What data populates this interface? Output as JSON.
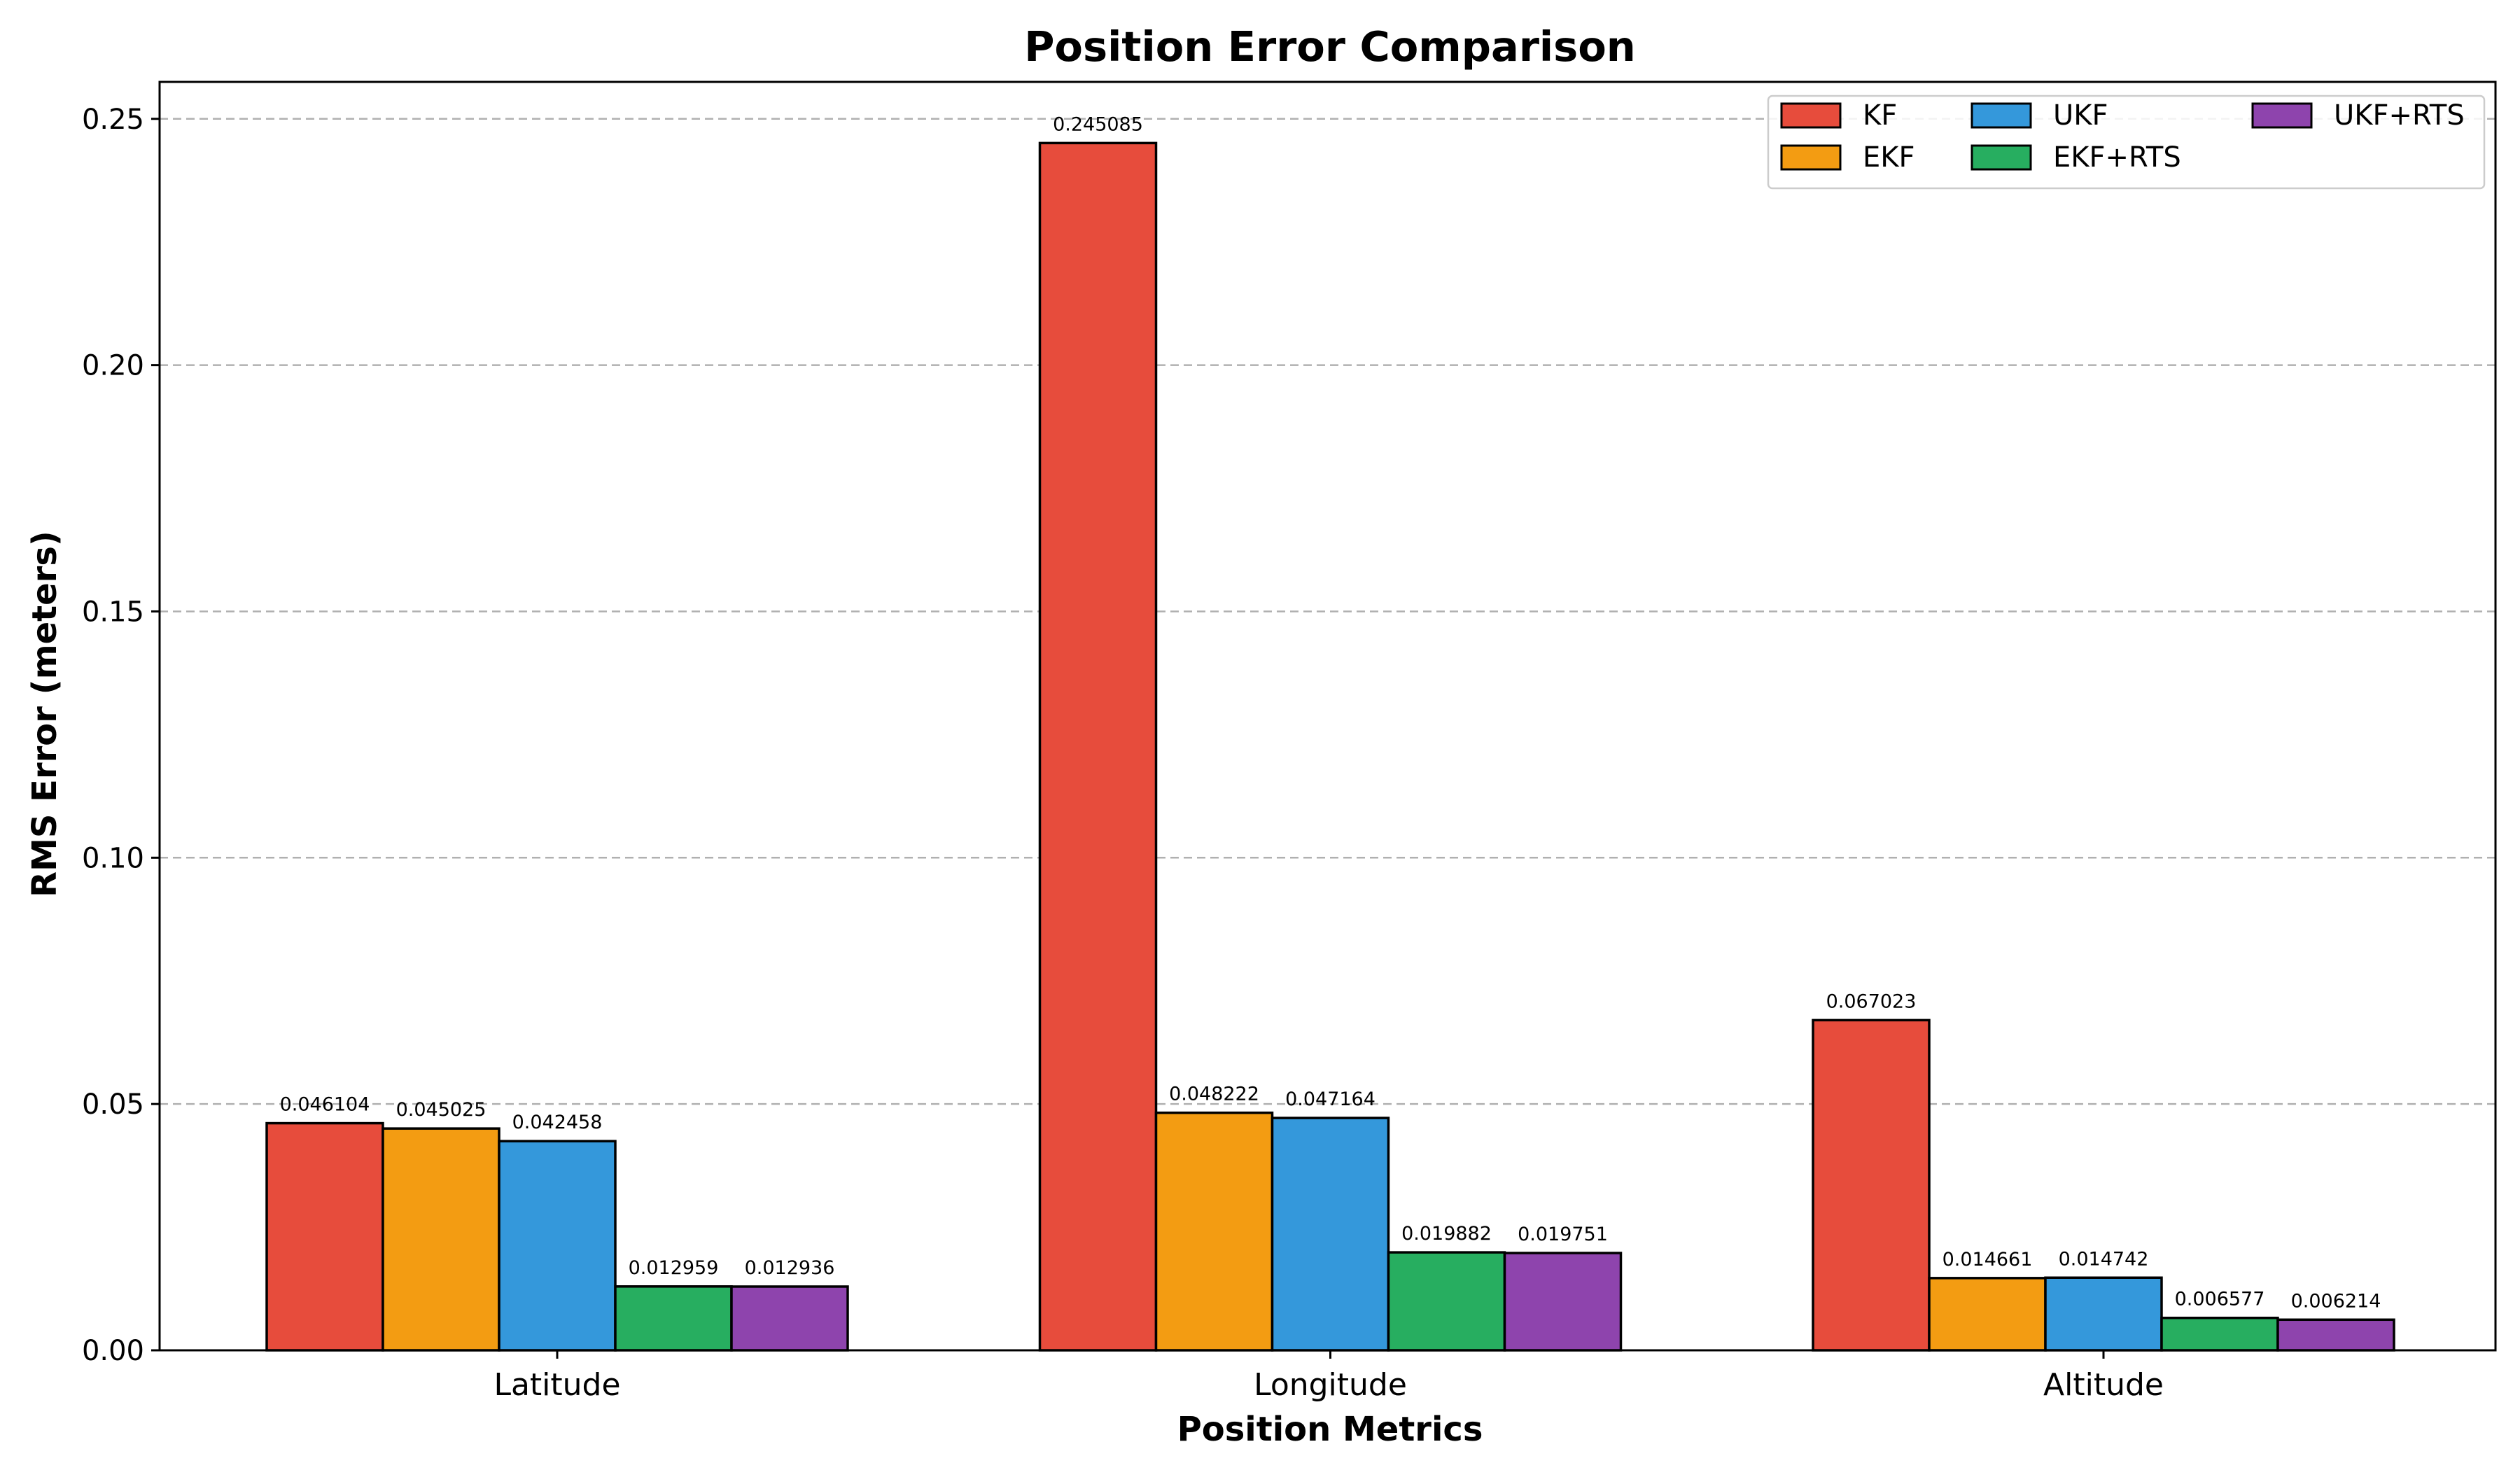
{
  "chart_data": {
    "type": "bar",
    "title": "Position Error Comparison",
    "xlabel": "Position Metrics",
    "ylabel": "RMS Error (meters)",
    "categories": [
      "Latitude",
      "Longitude",
      "Altitude"
    ],
    "ylim": [
      0,
      0.2575
    ],
    "yticks": [
      "0.00",
      "0.05",
      "0.10",
      "0.15",
      "0.20",
      "0.25"
    ],
    "ytick_values": [
      0,
      0.05,
      0.1,
      0.15,
      0.2,
      0.25
    ],
    "grid": "y-dashed",
    "legend_position": "top-right",
    "series": [
      {
        "name": "KF",
        "color": "#e74c3c",
        "values": [
          0.046104,
          0.245085,
          0.067023
        ],
        "labels": [
          "0.046104",
          "0.245085",
          "0.067023"
        ]
      },
      {
        "name": "EKF",
        "color": "#f39c12",
        "values": [
          0.045025,
          0.048222,
          0.014661
        ],
        "labels": [
          "0.045025",
          "0.048222",
          "0.014661"
        ]
      },
      {
        "name": "UKF",
        "color": "#3498db",
        "values": [
          0.042458,
          0.047164,
          0.014742
        ],
        "labels": [
          "0.042458",
          "0.047164",
          "0.014742"
        ]
      },
      {
        "name": "EKF+RTS",
        "color": "#27ae60",
        "values": [
          0.012959,
          0.019882,
          0.006577
        ],
        "labels": [
          "0.012959",
          "0.019882",
          "0.006577"
        ]
      },
      {
        "name": "UKF+RTS",
        "color": "#8e44ad",
        "values": [
          0.012936,
          0.019751,
          0.006214
        ],
        "labels": [
          "0.012936",
          "0.019751",
          "0.006214"
        ]
      }
    ]
  }
}
